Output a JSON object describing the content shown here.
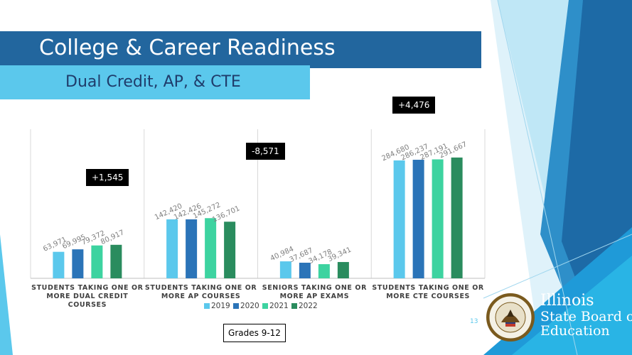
{
  "slide": {
    "title": "College & Career Readiness",
    "subtitle": "Dual Credit, AP, & CTE",
    "footer_box": "Grades 9-12",
    "page_number": "13",
    "logo": {
      "line1": "Illinois",
      "line2": "State Board of",
      "line3": "Education"
    },
    "colors": {
      "title_bar": "#22669e",
      "subtitle_bar": "#5bc8ec",
      "subtitle_text": "#1f3c6b"
    }
  },
  "chart_data": {
    "type": "bar",
    "categories": [
      "STUDENTS TAKING ONE OR MORE DUAL CREDIT COURSES",
      "STUDENTS TAKING ONE OR MORE AP COURSES",
      "SENIORS TAKING ONE OR MORE AP EXAMS",
      "STUDENTS TAKING ONE OR MORE CTE COURSES"
    ],
    "category_lines": [
      [
        "STUDENTS TAKING ONE OR",
        "MORE DUAL CREDIT",
        "COURSES"
      ],
      [
        "STUDENTS TAKING ONE OR",
        "MORE AP COURSES"
      ],
      [
        "SENIORS TAKING ONE OR",
        "MORE AP EXAMS"
      ],
      [
        "STUDENTS TAKING ONE OR",
        "MORE CTE COURSES"
      ]
    ],
    "series": [
      {
        "name": "2019",
        "color": "#5bc8ec",
        "values": [
          63971,
          142420,
          40984,
          284680
        ],
        "labels": [
          "63,971",
          "142,420",
          "40,984",
          "284,680"
        ]
      },
      {
        "name": "2020",
        "color": "#2b74b8",
        "values": [
          69995,
          142426,
          37687,
          286237
        ],
        "labels": [
          "69,995",
          "142,426",
          "37,687",
          "286,237"
        ]
      },
      {
        "name": "2021",
        "color": "#3dd3a0",
        "values": [
          79372,
          145272,
          34178,
          287191
        ],
        "labels": [
          "79,372",
          "145,272",
          "34,178",
          "287,191"
        ]
      },
      {
        "name": "2022",
        "color": "#2a8c5e",
        "values": [
          80917,
          136701,
          39341,
          291667
        ],
        "labels": [
          "80,917",
          "136,701",
          "39,341",
          "291,667"
        ]
      }
    ],
    "callouts": [
      "+1,545",
      "-8,571",
      "+4,476"
    ],
    "ylim": [
      0,
      360000
    ],
    "legend": "bottom",
    "grid": false
  }
}
